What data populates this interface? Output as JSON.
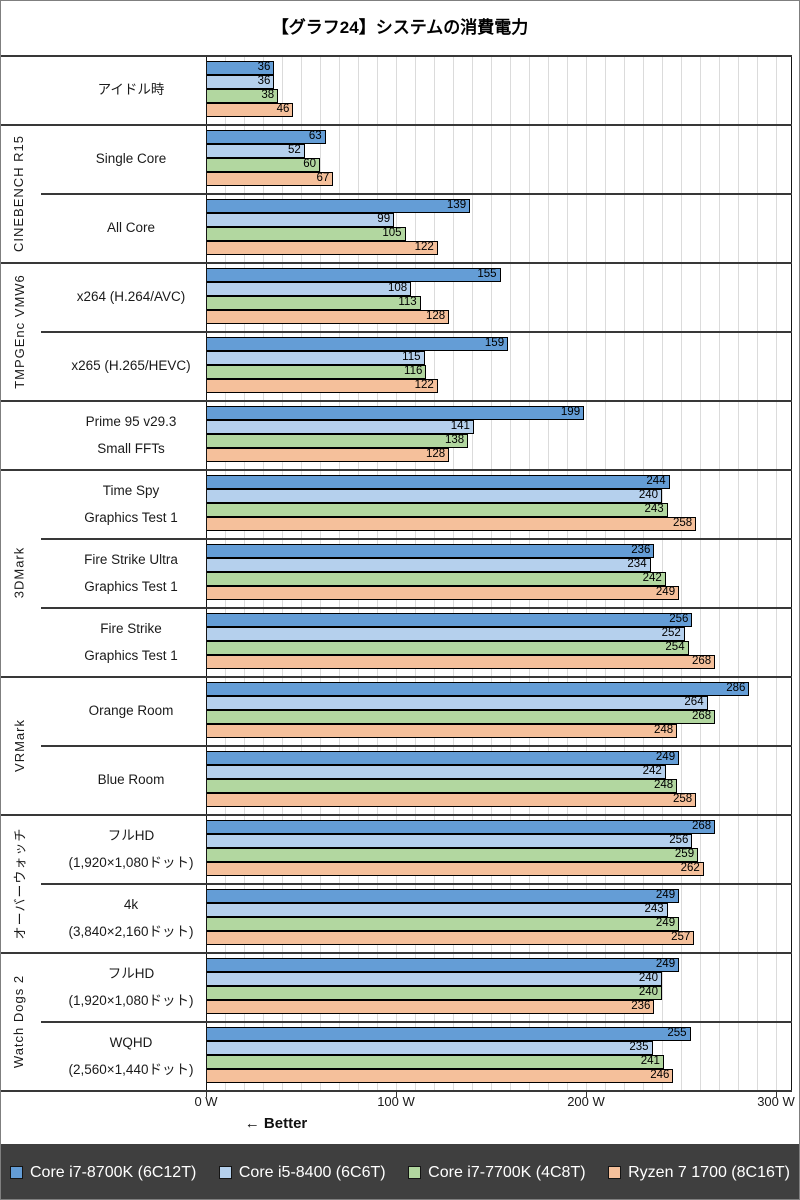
{
  "title": "【グラフ24】システムの消費電力",
  "axis": {
    "better_label": "← Better"
  },
  "colors": {
    "legend_bg": "#3F3F3F",
    "legend_text": "#FFFFFF",
    "gridline": "#DBDBDB",
    "bar_border": "#000000"
  },
  "chart_data": {
    "type": "bar",
    "orientation": "horizontal",
    "title": "【グラフ24】システムの消費電力",
    "xlabel": "W",
    "xlim": [
      0,
      300
    ],
    "gridline_step": 10,
    "legend_position": "bottom",
    "x_ticks": [
      {
        "value": 0,
        "label": "0 W"
      },
      {
        "value": 100,
        "label": "100 W"
      },
      {
        "value": 200,
        "label": "200 W"
      },
      {
        "value": 300,
        "label": "300 W"
      }
    ],
    "groups": [
      {
        "label": "",
        "rows": [
          0
        ]
      },
      {
        "label": "CINEBENCH R15",
        "rows": [
          1,
          2
        ]
      },
      {
        "label": "TMPGEnc VMW6",
        "rows": [
          3,
          4
        ]
      },
      {
        "label": "",
        "rows": [
          5
        ]
      },
      {
        "label": "3DMark",
        "rows": [
          6,
          7,
          8
        ]
      },
      {
        "label": "VRMark",
        "rows": [
          9,
          10
        ]
      },
      {
        "label": "オーバーウォッチ",
        "rows": [
          11,
          12
        ]
      },
      {
        "label": "Watch Dogs 2",
        "rows": [
          13,
          14
        ]
      }
    ],
    "categories": [
      [
        "アイドル時"
      ],
      [
        "Single Core"
      ],
      [
        "All Core"
      ],
      [
        "x264 (H.264/AVC)"
      ],
      [
        "x265 (H.265/HEVC)"
      ],
      [
        "Prime 95 v29.3",
        "Small FFTs"
      ],
      [
        "Time Spy",
        "Graphics Test 1"
      ],
      [
        "Fire Strike Ultra",
        "Graphics Test 1"
      ],
      [
        "Fire Strike",
        "Graphics Test 1"
      ],
      [
        "Orange Room"
      ],
      [
        "Blue Room"
      ],
      [
        "フルHD",
        "(1,920×1,080ドット)"
      ],
      [
        "4k",
        "(3,840×2,160ドット)"
      ],
      [
        "フルHD",
        "(1,920×1,080ドット)"
      ],
      [
        "WQHD",
        "(2,560×1,440ドット)"
      ]
    ],
    "series": [
      {
        "name": "Core i7-8700K (6C12T)",
        "color": "#649DD6",
        "values": [
          36,
          63,
          139,
          155,
          159,
          199,
          244,
          236,
          256,
          286,
          249,
          268,
          249,
          249,
          255
        ]
      },
      {
        "name": "Core i5-8400 (6C6T)",
        "color": "#B5D0ED",
        "values": [
          36,
          52,
          99,
          108,
          115,
          141,
          240,
          234,
          252,
          264,
          242,
          256,
          243,
          240,
          235
        ]
      },
      {
        "name": "Core i7-7700K (4C8T)",
        "color": "#B2D7A0",
        "values": [
          38,
          60,
          105,
          113,
          116,
          138,
          243,
          242,
          254,
          268,
          248,
          259,
          249,
          240,
          241
        ]
      },
      {
        "name": "Ryzen 7 1700 (8C16T)",
        "color": "#F5C09B",
        "values": [
          46,
          67,
          122,
          128,
          122,
          128,
          258,
          249,
          268,
          248,
          258,
          262,
          257,
          236,
          246
        ]
      }
    ]
  }
}
